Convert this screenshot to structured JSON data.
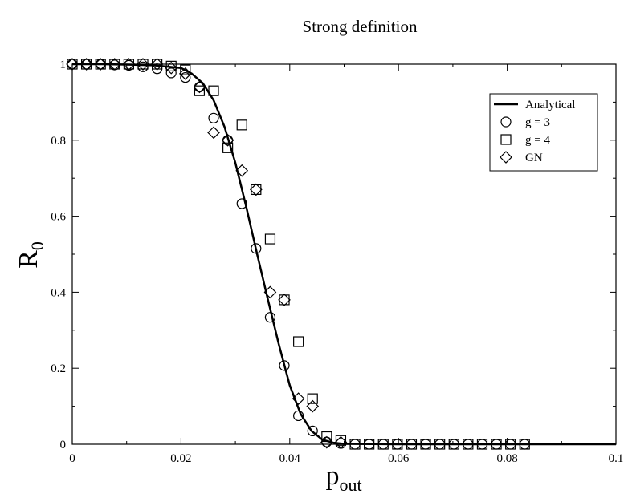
{
  "chart_data": {
    "type": "scatter",
    "title": "Strong definition",
    "xlabel": "p",
    "xlabel_sub": "out",
    "ylabel": "R",
    "ylabel_sub": "0",
    "xlim": [
      0,
      0.1
    ],
    "ylim": [
      0,
      1
    ],
    "x_ticks": [
      0,
      0.02,
      0.04,
      0.06,
      0.08,
      0.1
    ],
    "x_tick_labels": [
      "0",
      "0.02",
      "0.04",
      "0.06",
      "0.08",
      "0.1"
    ],
    "y_ticks": [
      0,
      0.2,
      0.4,
      0.6,
      0.8,
      1
    ],
    "y_tick_labels": [
      "0",
      "0.2",
      "0.4",
      "0.6",
      "0.8",
      "1"
    ],
    "grid": false,
    "legend_position": "top-right",
    "series": [
      {
        "name": "Analytical",
        "marker": "line",
        "x": [
          0,
          0.005,
          0.01,
          0.015,
          0.02,
          0.022,
          0.024,
          0.026,
          0.028,
          0.03,
          0.032,
          0.034,
          0.036,
          0.038,
          0.04,
          0.042,
          0.044,
          0.046,
          0.048,
          0.05,
          0.06,
          0.08,
          0.1
        ],
        "y": [
          1.0,
          1.0,
          0.999,
          0.997,
          0.99,
          0.975,
          0.95,
          0.905,
          0.835,
          0.74,
          0.625,
          0.5,
          0.38,
          0.262,
          0.155,
          0.08,
          0.035,
          0.012,
          0.004,
          0.001,
          0.0,
          0.0,
          0.0
        ]
      },
      {
        "name": "g = 3",
        "marker": "circle",
        "x": [
          0,
          0.0026,
          0.0052,
          0.0078,
          0.0104,
          0.013,
          0.0156,
          0.0182,
          0.0208,
          0.0234,
          0.026,
          0.0286,
          0.0312,
          0.0338,
          0.0364,
          0.039,
          0.0416,
          0.0442,
          0.0468,
          0.0494,
          0.052,
          0.0546,
          0.0572,
          0.0598,
          0.0624,
          0.065,
          0.0676,
          0.0702,
          0.0728,
          0.0754,
          0.078,
          0.0806,
          0.0832
        ],
        "y": [
          1.0,
          1.0,
          1.0,
          0.998,
          0.997,
          0.993,
          0.988,
          0.977,
          0.965,
          0.94,
          0.858,
          0.8,
          0.633,
          0.515,
          0.334,
          0.207,
          0.075,
          0.035,
          0.006,
          0.002,
          0.0,
          0.0,
          0.0,
          0.0,
          0.0,
          0.0,
          0.0,
          0.0,
          0.0,
          0.0,
          0.0,
          0.0,
          0.0
        ]
      },
      {
        "name": "g = 4",
        "marker": "square",
        "x": [
          0,
          0.0026,
          0.0052,
          0.0078,
          0.0104,
          0.013,
          0.0156,
          0.0182,
          0.0208,
          0.0234,
          0.026,
          0.0286,
          0.0312,
          0.0338,
          0.0364,
          0.039,
          0.0416,
          0.0442,
          0.0468,
          0.0494,
          0.052,
          0.0546,
          0.0572,
          0.0598,
          0.0624,
          0.065,
          0.0676,
          0.0702,
          0.0728,
          0.0754,
          0.078,
          0.0806,
          0.0832
        ],
        "y": [
          1.0,
          1.0,
          1.0,
          1.0,
          1.0,
          1.0,
          1.0,
          0.995,
          0.985,
          0.93,
          0.93,
          0.78,
          0.84,
          0.67,
          0.54,
          0.38,
          0.27,
          0.12,
          0.02,
          0.01,
          0.0,
          0.0,
          0.0,
          0.0,
          0.0,
          0.0,
          0.0,
          0.0,
          0.0,
          0.0,
          0.0,
          0.0,
          0.0
        ]
      },
      {
        "name": "GN",
        "marker": "diamond",
        "x": [
          0,
          0.0026,
          0.0052,
          0.0078,
          0.0104,
          0.013,
          0.0156,
          0.0182,
          0.0208,
          0.0234,
          0.026,
          0.0286,
          0.0312,
          0.0338,
          0.0364,
          0.039,
          0.0416,
          0.0442,
          0.0468,
          0.0494
        ],
        "y": [
          1.0,
          1.0,
          1.0,
          1.0,
          1.0,
          1.0,
          1.0,
          0.99,
          0.975,
          0.94,
          0.82,
          0.8,
          0.72,
          0.67,
          0.4,
          0.38,
          0.12,
          0.1,
          0.005,
          0.005
        ]
      }
    ]
  }
}
